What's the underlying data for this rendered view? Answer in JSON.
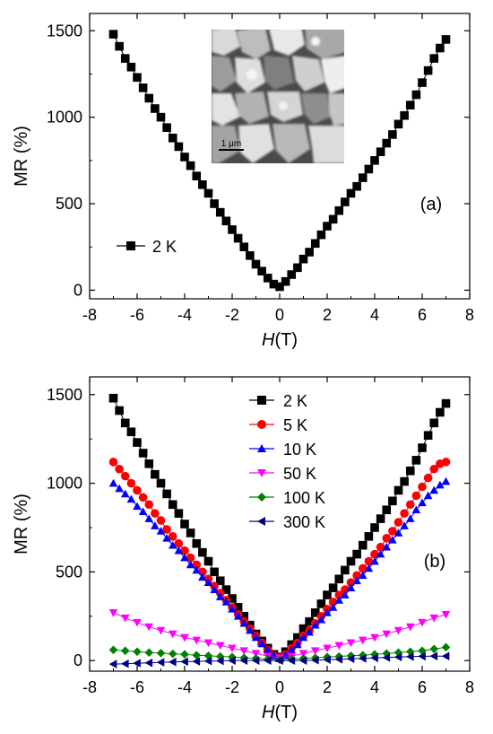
{
  "chart_data": [
    {
      "type": "scatter",
      "panel_label": "(a)",
      "xlabel_italic": "H",
      "xlabel_unit": "(T)",
      "ylabel": "MR (%)",
      "xlim": [
        -8,
        8
      ],
      "ylim": [
        -50,
        1600
      ],
      "x_ticks": [
        -8,
        -6,
        -4,
        -2,
        0,
        2,
        4,
        6,
        8
      ],
      "y_ticks": [
        0,
        500,
        1000,
        1500
      ],
      "grid": false,
      "legend_position": "center-left",
      "series": [
        {
          "name": "2 K",
          "color": "#000000",
          "marker": "square",
          "x": [
            -7,
            -6.75,
            -6.5,
            -6.25,
            -6,
            -5.75,
            -5.5,
            -5.25,
            -5,
            -4.75,
            -4.5,
            -4.25,
            -4,
            -3.75,
            -3.5,
            -3.25,
            -3,
            -2.75,
            -2.5,
            -2.25,
            -2,
            -1.75,
            -1.5,
            -1.25,
            -1,
            -0.75,
            -0.5,
            -0.25,
            0,
            0.25,
            0.5,
            0.75,
            1,
            1.25,
            1.5,
            1.75,
            2,
            2.25,
            2.5,
            2.75,
            3,
            3.25,
            3.5,
            3.75,
            4,
            4.25,
            4.5,
            4.75,
            5,
            5.25,
            5.5,
            5.75,
            6,
            6.25,
            6.5,
            6.75,
            7
          ],
          "y": [
            1480,
            1410,
            1340,
            1290,
            1230,
            1170,
            1110,
            1050,
            1000,
            940,
            880,
            830,
            770,
            720,
            660,
            610,
            560,
            500,
            450,
            400,
            350,
            300,
            250,
            200,
            150,
            110,
            70,
            35,
            20,
            50,
            90,
            130,
            180,
            220,
            270,
            320,
            370,
            410,
            460,
            510,
            560,
            600,
            650,
            700,
            750,
            800,
            850,
            900,
            960,
            1010,
            1070,
            1130,
            1200,
            1270,
            1340,
            1400,
            1450
          ]
        }
      ],
      "inset": {
        "scale_bar_label": "1 µm"
      }
    },
    {
      "type": "scatter",
      "panel_label": "(b)",
      "xlabel_italic": "H",
      "xlabel_unit": "(T)",
      "ylabel": "MR (%)",
      "xlim": [
        -8,
        8
      ],
      "ylim": [
        -60,
        1600
      ],
      "x_ticks": [
        -8,
        -6,
        -4,
        -2,
        0,
        2,
        4,
        6,
        8
      ],
      "y_ticks": [
        0,
        500,
        1000,
        1500
      ],
      "grid": false,
      "legend_position": "top-right",
      "series": [
        {
          "name": "2 K",
          "color": "#000000",
          "marker": "square",
          "x": [
            -7,
            -6.75,
            -6.5,
            -6.25,
            -6,
            -5.75,
            -5.5,
            -5.25,
            -5,
            -4.75,
            -4.5,
            -4.25,
            -4,
            -3.75,
            -3.5,
            -3.25,
            -3,
            -2.75,
            -2.5,
            -2.25,
            -2,
            -1.75,
            -1.5,
            -1.25,
            -1,
            -0.75,
            -0.5,
            -0.25,
            0,
            0.25,
            0.5,
            0.75,
            1,
            1.25,
            1.5,
            1.75,
            2,
            2.25,
            2.5,
            2.75,
            3,
            3.25,
            3.5,
            3.75,
            4,
            4.25,
            4.5,
            4.75,
            5,
            5.25,
            5.5,
            5.75,
            6,
            6.25,
            6.5,
            6.75,
            7
          ],
          "y": [
            1480,
            1410,
            1340,
            1290,
            1230,
            1170,
            1110,
            1050,
            1000,
            940,
            880,
            830,
            770,
            720,
            660,
            610,
            560,
            500,
            450,
            400,
            350,
            300,
            250,
            200,
            150,
            110,
            70,
            35,
            20,
            50,
            90,
            130,
            180,
            220,
            270,
            320,
            370,
            410,
            460,
            510,
            560,
            600,
            650,
            700,
            750,
            800,
            850,
            900,
            960,
            1010,
            1070,
            1130,
            1200,
            1270,
            1340,
            1400,
            1450
          ]
        },
        {
          "name": "5 K",
          "color": "#ff0000",
          "marker": "circle",
          "x": [
            -7,
            -6.75,
            -6.5,
            -6.25,
            -6,
            -5.75,
            -5.5,
            -5.25,
            -5,
            -4.75,
            -4.5,
            -4.25,
            -4,
            -3.75,
            -3.5,
            -3.25,
            -3,
            -2.75,
            -2.5,
            -2.25,
            -2,
            -1.75,
            -1.5,
            -1.25,
            -1,
            -0.75,
            -0.5,
            -0.25,
            0,
            0.25,
            0.5,
            0.75,
            1,
            1.25,
            1.5,
            1.75,
            2,
            2.25,
            2.5,
            2.75,
            3,
            3.25,
            3.5,
            3.75,
            4,
            4.25,
            4.5,
            4.75,
            5,
            5.25,
            5.5,
            5.75,
            6,
            6.25,
            6.5,
            6.75,
            7
          ],
          "y": [
            1120,
            1080,
            1040,
            1000,
            960,
            920,
            880,
            830,
            790,
            740,
            700,
            660,
            620,
            580,
            540,
            500,
            460,
            420,
            380,
            340,
            300,
            260,
            220,
            180,
            140,
            100,
            60,
            30,
            15,
            35,
            70,
            100,
            140,
            170,
            210,
            250,
            290,
            330,
            370,
            400,
            440,
            480,
            520,
            560,
            600,
            640,
            690,
            730,
            780,
            830,
            880,
            930,
            980,
            1030,
            1080,
            1110,
            1120
          ]
        },
        {
          "name": "10 K",
          "color": "#0000ff",
          "marker": "triangle-up",
          "x": [
            -7,
            -6.75,
            -6.5,
            -6.25,
            -6,
            -5.75,
            -5.5,
            -5.25,
            -5,
            -4.75,
            -4.5,
            -4.25,
            -4,
            -3.75,
            -3.5,
            -3.25,
            -3,
            -2.75,
            -2.5,
            -2.25,
            -2,
            -1.75,
            -1.5,
            -1.25,
            -1,
            -0.75,
            -0.5,
            -0.25,
            0,
            0.25,
            0.5,
            0.75,
            1,
            1.25,
            1.5,
            1.75,
            2,
            2.25,
            2.5,
            2.75,
            3,
            3.25,
            3.5,
            3.75,
            4,
            4.25,
            4.5,
            4.75,
            5,
            5.25,
            5.5,
            5.75,
            6,
            6.25,
            6.5,
            6.75,
            7
          ],
          "y": [
            1000,
            970,
            940,
            910,
            870,
            840,
            800,
            760,
            730,
            690,
            650,
            620,
            580,
            540,
            510,
            470,
            440,
            400,
            360,
            330,
            290,
            250,
            210,
            170,
            130,
            95,
            60,
            30,
            10,
            30,
            60,
            90,
            130,
            160,
            200,
            230,
            270,
            300,
            340,
            370,
            410,
            450,
            480,
            520,
            560,
            600,
            640,
            680,
            720,
            760,
            800,
            850,
            890,
            930,
            960,
            990,
            1010
          ]
        },
        {
          "name": "50 K",
          "color": "#ff00ff",
          "marker": "triangle-down",
          "x": [
            -7,
            -6.5,
            -6,
            -5.5,
            -5,
            -4.5,
            -4,
            -3.5,
            -3,
            -2.5,
            -2,
            -1.5,
            -1,
            -0.5,
            0,
            0.5,
            1,
            1.5,
            2,
            2.5,
            3,
            3.5,
            4,
            4.5,
            5,
            5.5,
            6,
            6.5,
            7
          ],
          "y": [
            270,
            240,
            215,
            190,
            170,
            150,
            130,
            115,
            100,
            85,
            70,
            55,
            40,
            25,
            15,
            25,
            40,
            55,
            70,
            85,
            100,
            115,
            130,
            150,
            170,
            190,
            215,
            240,
            260
          ]
        },
        {
          "name": "100 K",
          "color": "#008000",
          "marker": "diamond",
          "x": [
            -7,
            -6.5,
            -6,
            -5.5,
            -5,
            -4.5,
            -4,
            -3.5,
            -3,
            -2.5,
            -2,
            -1.5,
            -1,
            -0.5,
            0,
            0.5,
            1,
            1.5,
            2,
            2.5,
            3,
            3.5,
            4,
            4.5,
            5,
            5.5,
            6,
            6.5,
            7
          ],
          "y": [
            60,
            55,
            50,
            45,
            42,
            38,
            35,
            30,
            27,
            23,
            20,
            15,
            12,
            8,
            5,
            8,
            12,
            15,
            20,
            23,
            27,
            30,
            35,
            40,
            45,
            50,
            55,
            65,
            75
          ]
        },
        {
          "name": "300 K",
          "color": "#000080",
          "marker": "triangle-left",
          "x": [
            -7,
            -6.5,
            -6,
            -5.5,
            -5,
            -4.5,
            -4,
            -3.5,
            -3,
            -2.5,
            -2,
            -1.5,
            -1,
            -0.5,
            0,
            0.5,
            1,
            1.5,
            2,
            2.5,
            3,
            3.5,
            4,
            4.5,
            5,
            5.5,
            6,
            6.5,
            7
          ],
          "y": [
            -20,
            -18,
            -15,
            -13,
            -10,
            -8,
            -6,
            -5,
            -3,
            -2,
            0,
            0,
            0,
            0,
            0,
            0,
            0,
            2,
            5,
            7,
            10,
            12,
            15,
            17,
            20,
            22,
            24,
            25,
            25
          ]
        }
      ]
    }
  ]
}
